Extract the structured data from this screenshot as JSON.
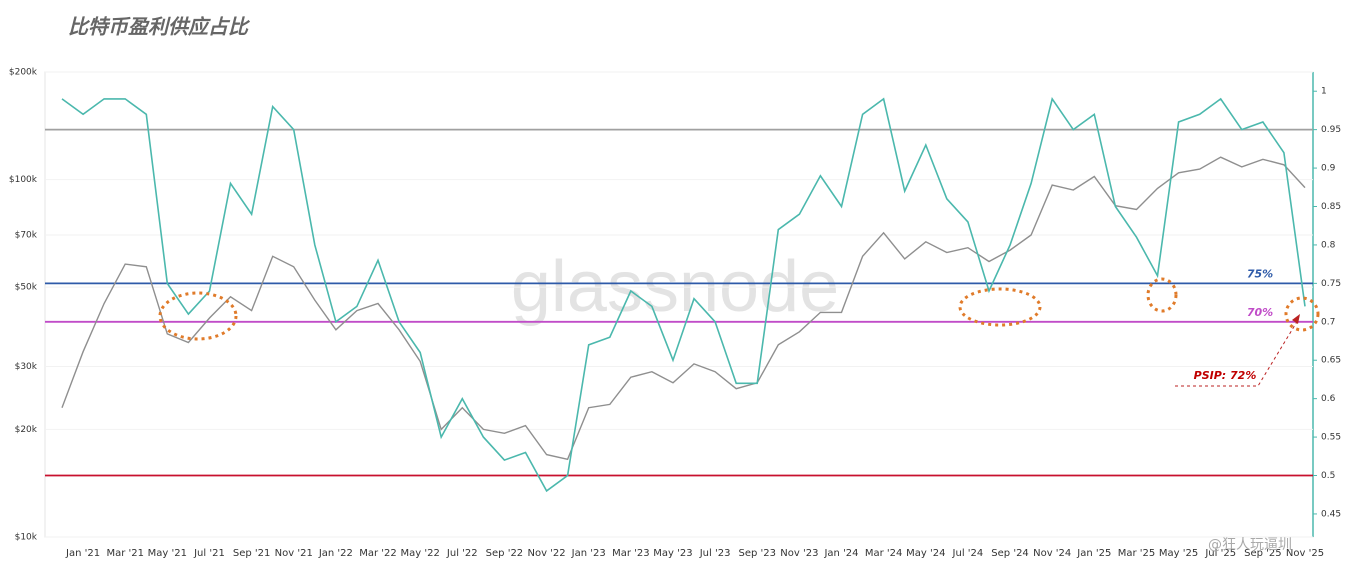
{
  "chart_data": {
    "type": "line",
    "title": "比特币盈利供应占比",
    "watermark": "glassnode",
    "watermark2": "@狂人玩逼圳",
    "annotation": "PSIP: 72%",
    "categories": [
      null,
      "Jan '21",
      null,
      "Mar '21",
      null,
      "May '21",
      null,
      "Jul '21",
      null,
      "Sep '21",
      null,
      "Nov '21",
      null,
      "Jan '22",
      null,
      "Mar '22",
      null,
      "May '22",
      null,
      "Jul '22",
      null,
      "Sep '22",
      null,
      "Nov '22",
      null,
      "Jan '23",
      null,
      "Mar '23",
      null,
      "May '23",
      null,
      "Jul '23",
      null,
      "Sep '23",
      null,
      "Nov '23",
      null,
      "Jan '24",
      null,
      "Mar '24",
      null,
      "May '24",
      null,
      "Jul '24",
      null,
      "Sep '24",
      null,
      "Nov '24",
      null,
      "Jan '25",
      null,
      "Mar '25",
      null,
      "May '25",
      null,
      "Jul '25",
      null,
      "Sep '25",
      null,
      "Nov '25"
    ],
    "log": true,
    "ylim": [
      10000,
      200000
    ],
    "yticks": [
      {
        "value": 10000,
        "label": "$10k"
      },
      {
        "value": 20000,
        "label": "$20k"
      },
      {
        "value": 30000,
        "label": "$30k"
      },
      {
        "value": 50000,
        "label": "$50k"
      },
      {
        "value": 70000,
        "label": "$70k"
      },
      {
        "value": 100000,
        "label": "$100k"
      },
      {
        "value": 200000,
        "label": "$200k"
      }
    ],
    "y2lim": [
      0.42,
      1.025
    ],
    "y2ticks": [
      0.45,
      0.5,
      0.55,
      0.6,
      0.65,
      0.7,
      0.75,
      0.8,
      0.85,
      0.9,
      0.95,
      1
    ],
    "hlines": [
      {
        "value": 0.95,
        "color": "#a0a0a0"
      },
      {
        "value": 0.75,
        "color": "#2e5aa8",
        "label": "75%"
      },
      {
        "value": 0.7,
        "color": "#c04cc8",
        "label": "70%"
      },
      {
        "value": 0.5,
        "color": "#c8102e"
      }
    ],
    "series": [
      {
        "color": "#8f8f8f",
        "axis": "y",
        "values": [
          23000,
          33000,
          45000,
          58000,
          57000,
          37000,
          35000,
          41000,
          47000,
          43000,
          61000,
          57000,
          46000,
          38000,
          43000,
          45000,
          38000,
          31000,
          20000,
          23000,
          20000,
          19500,
          20500,
          17000,
          16500,
          23000,
          23500,
          28000,
          29000,
          27000,
          30500,
          29000,
          26000,
          27000,
          34500,
          37500,
          42500,
          42500,
          61000,
          71000,
          60000,
          67000,
          62500,
          64500,
          59000,
          63500,
          70000,
          96500,
          93500,
          102000,
          84500,
          82500,
          94500,
          104500,
          107000,
          115500,
          108500,
          114000,
          110000,
          95000
        ]
      },
      {
        "color": "#4bb8ad",
        "axis": "y2",
        "values": [
          0.99,
          0.97,
          0.99,
          0.99,
          0.97,
          0.75,
          0.71,
          0.74,
          0.88,
          0.84,
          0.98,
          0.95,
          0.8,
          0.7,
          0.72,
          0.78,
          0.7,
          0.66,
          0.55,
          0.6,
          0.55,
          0.52,
          0.53,
          0.48,
          0.5,
          0.67,
          0.68,
          0.74,
          0.72,
          0.65,
          0.73,
          0.7,
          0.62,
          0.62,
          0.82,
          0.84,
          0.89,
          0.85,
          0.97,
          0.99,
          0.87,
          0.93,
          0.86,
          0.83,
          0.74,
          0.8,
          0.88,
          0.99,
          0.95,
          0.97,
          0.85,
          0.81,
          0.76,
          0.96,
          0.97,
          0.99,
          0.95,
          0.96,
          0.92,
          0.72
        ]
      }
    ]
  }
}
